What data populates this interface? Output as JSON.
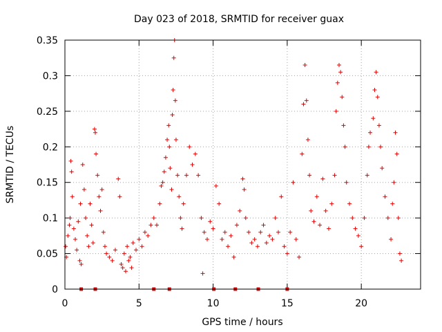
{
  "chart_data": {
    "type": "scatter",
    "title": "Day 023 of 2018, SRMTID for receiver guax",
    "xlabel": "GPS time / hours",
    "ylabel": "SRMTID / TECUs",
    "xlim": [
      0,
      24
    ],
    "ylim": [
      0,
      0.35
    ],
    "xticks": [
      0,
      5,
      10,
      15,
      20
    ],
    "xtick_labels": [
      "0",
      "5",
      "10",
      "15",
      "20"
    ],
    "yticks": [
      0,
      0.05,
      0.1,
      0.15,
      0.2,
      0.25,
      0.3,
      0.35
    ],
    "ytick_labels": [
      "0",
      "0.05",
      "0.1",
      "0.15",
      "0.2",
      "0.25",
      "0.3",
      "0.35"
    ],
    "grid": true,
    "marker": "+",
    "series_color": "#dd0000",
    "grid_color": "#a0a0a0",
    "baseline_markers_x": [
      1.1,
      2.05,
      6.0,
      7.05,
      10.05,
      11.5,
      13.05,
      15.0
    ],
    "series": [
      {
        "name": "SRMTID",
        "note": "dense cloud of points sampled across 0-22.7 h; representative subset of values read from the plot",
        "points": [
          [
            0.05,
            0.06
          ],
          [
            0.1,
            0.045
          ],
          [
            0.2,
            0.075
          ],
          [
            0.3,
            0.09
          ],
          [
            0.35,
            0.1
          ],
          [
            0.4,
            0.18
          ],
          [
            0.45,
            0.165
          ],
          [
            0.5,
            0.13
          ],
          [
            0.6,
            0.085
          ],
          [
            0.7,
            0.07
          ],
          [
            0.8,
            0.055
          ],
          [
            0.9,
            0.095
          ],
          [
            1.0,
            0.04
          ],
          [
            1.05,
            0.12
          ],
          [
            1.1,
            0.035
          ],
          [
            1.2,
            0.175
          ],
          [
            1.3,
            0.14
          ],
          [
            1.4,
            0.1
          ],
          [
            1.5,
            0.075
          ],
          [
            1.6,
            0.06
          ],
          [
            1.7,
            0.12
          ],
          [
            1.8,
            0.09
          ],
          [
            1.9,
            0.065
          ],
          [
            2.0,
            0.225
          ],
          [
            2.05,
            0.22
          ],
          [
            2.1,
            0.19
          ],
          [
            2.2,
            0.16
          ],
          [
            2.3,
            0.13
          ],
          [
            2.4,
            0.11
          ],
          [
            2.5,
            0.14
          ],
          [
            2.6,
            0.08
          ],
          [
            2.7,
            0.06
          ],
          [
            2.8,
            0.05
          ],
          [
            3.0,
            0.045
          ],
          [
            3.2,
            0.04
          ],
          [
            3.4,
            0.055
          ],
          [
            3.6,
            0.155
          ],
          [
            3.7,
            0.13
          ],
          [
            3.8,
            0.035
          ],
          [
            3.9,
            0.03
          ],
          [
            4.0,
            0.05
          ],
          [
            4.1,
            0.025
          ],
          [
            4.2,
            0.06
          ],
          [
            4.3,
            0.04
          ],
          [
            4.4,
            0.045
          ],
          [
            4.5,
            0.03
          ],
          [
            4.6,
            0.065
          ],
          [
            4.8,
            0.055
          ],
          [
            5.0,
            0.07
          ],
          [
            5.2,
            0.06
          ],
          [
            5.4,
            0.08
          ],
          [
            5.6,
            0.075
          ],
          [
            5.8,
            0.09
          ],
          [
            6.0,
            0.1
          ],
          [
            6.2,
            0.09
          ],
          [
            6.4,
            0.12
          ],
          [
            6.5,
            0.145
          ],
          [
            6.6,
            0.15
          ],
          [
            6.7,
            0.165
          ],
          [
            6.8,
            0.185
          ],
          [
            6.9,
            0.21
          ],
          [
            7.0,
            0.23
          ],
          [
            7.05,
            0.2
          ],
          [
            7.1,
            0.17
          ],
          [
            7.2,
            0.14
          ],
          [
            7.25,
            0.245
          ],
          [
            7.3,
            0.28
          ],
          [
            7.35,
            0.325
          ],
          [
            7.4,
            0.35
          ],
          [
            7.45,
            0.265
          ],
          [
            7.5,
            0.21
          ],
          [
            7.6,
            0.16
          ],
          [
            7.7,
            0.13
          ],
          [
            7.8,
            0.1
          ],
          [
            7.9,
            0.085
          ],
          [
            8.0,
            0.12
          ],
          [
            8.2,
            0.16
          ],
          [
            8.4,
            0.2
          ],
          [
            8.6,
            0.175
          ],
          [
            8.8,
            0.19
          ],
          [
            9.0,
            0.16
          ],
          [
            9.2,
            0.1
          ],
          [
            9.3,
            0.022
          ],
          [
            9.4,
            0.08
          ],
          [
            9.6,
            0.07
          ],
          [
            9.8,
            0.095
          ],
          [
            10.0,
            0.085
          ],
          [
            10.2,
            0.145
          ],
          [
            10.4,
            0.12
          ],
          [
            10.6,
            0.07
          ],
          [
            10.8,
            0.08
          ],
          [
            11.0,
            0.06
          ],
          [
            11.2,
            0.075
          ],
          [
            11.4,
            0.045
          ],
          [
            11.6,
            0.09
          ],
          [
            11.8,
            0.11
          ],
          [
            12.0,
            0.155
          ],
          [
            12.1,
            0.14
          ],
          [
            12.2,
            0.1
          ],
          [
            12.4,
            0.08
          ],
          [
            12.6,
            0.065
          ],
          [
            12.8,
            0.07
          ],
          [
            13.0,
            0.06
          ],
          [
            13.2,
            0.08
          ],
          [
            13.4,
            0.09
          ],
          [
            13.6,
            0.065
          ],
          [
            13.8,
            0.075
          ],
          [
            14.0,
            0.07
          ],
          [
            14.2,
            0.1
          ],
          [
            14.4,
            0.08
          ],
          [
            14.6,
            0.13
          ],
          [
            14.8,
            0.06
          ],
          [
            15.0,
            0.05
          ],
          [
            15.2,
            0.08
          ],
          [
            15.4,
            0.15
          ],
          [
            15.6,
            0.07
          ],
          [
            15.8,
            0.045
          ],
          [
            16.0,
            0.19
          ],
          [
            16.1,
            0.26
          ],
          [
            16.2,
            0.315
          ],
          [
            16.3,
            0.265
          ],
          [
            16.4,
            0.21
          ],
          [
            16.5,
            0.16
          ],
          [
            16.6,
            0.11
          ],
          [
            16.8,
            0.095
          ],
          [
            17.0,
            0.13
          ],
          [
            17.2,
            0.09
          ],
          [
            17.4,
            0.155
          ],
          [
            17.6,
            0.11
          ],
          [
            17.8,
            0.085
          ],
          [
            18.0,
            0.12
          ],
          [
            18.2,
            0.16
          ],
          [
            18.3,
            0.25
          ],
          [
            18.4,
            0.29
          ],
          [
            18.5,
            0.315
          ],
          [
            18.6,
            0.305
          ],
          [
            18.7,
            0.27
          ],
          [
            18.8,
            0.23
          ],
          [
            18.9,
            0.2
          ],
          [
            19.0,
            0.15
          ],
          [
            19.2,
            0.12
          ],
          [
            19.4,
            0.1
          ],
          [
            19.6,
            0.085
          ],
          [
            19.8,
            0.075
          ],
          [
            20.0,
            0.06
          ],
          [
            20.2,
            0.1
          ],
          [
            20.4,
            0.16
          ],
          [
            20.5,
            0.2
          ],
          [
            20.6,
            0.22
          ],
          [
            20.8,
            0.24
          ],
          [
            20.9,
            0.28
          ],
          [
            21.0,
            0.305
          ],
          [
            21.1,
            0.27
          ],
          [
            21.2,
            0.23
          ],
          [
            21.3,
            0.2
          ],
          [
            21.4,
            0.17
          ],
          [
            21.6,
            0.13
          ],
          [
            21.8,
            0.1
          ],
          [
            22.0,
            0.07
          ],
          [
            22.1,
            0.12
          ],
          [
            22.2,
            0.15
          ],
          [
            22.3,
            0.22
          ],
          [
            22.4,
            0.19
          ],
          [
            22.5,
            0.1
          ],
          [
            22.6,
            0.05
          ],
          [
            22.7,
            0.04
          ]
        ]
      }
    ]
  }
}
